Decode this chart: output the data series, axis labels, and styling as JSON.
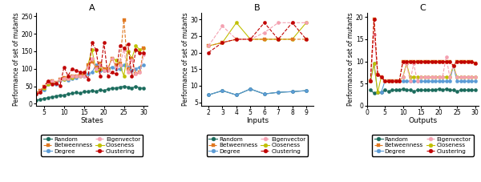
{
  "panel_A": {
    "title": "A",
    "xlabel": "States",
    "ylabel": "Performance of set of mutants",
    "xlim": [
      3,
      31
    ],
    "ylim": [
      -5,
      260
    ],
    "xticks": [
      5,
      10,
      15,
      20,
      25,
      30
    ],
    "yticks": [
      0,
      50,
      100,
      150,
      200,
      250
    ],
    "series": {
      "Random": {
        "x": [
          3,
          4,
          5,
          6,
          7,
          8,
          9,
          10,
          11,
          12,
          13,
          14,
          15,
          16,
          17,
          18,
          19,
          20,
          21,
          22,
          23,
          24,
          25,
          26,
          27,
          28,
          29,
          30
        ],
        "y": [
          10,
          13,
          15,
          18,
          20,
          22,
          25,
          25,
          28,
          30,
          32,
          30,
          35,
          35,
          38,
          35,
          40,
          38,
          42,
          45,
          45,
          48,
          50,
          48,
          45,
          50,
          45,
          45
        ],
        "color": "#1a6b5c",
        "marker": "o",
        "linestyle": "-"
      },
      "Degree": {
        "x": [
          3,
          4,
          5,
          6,
          7,
          8,
          9,
          10,
          11,
          12,
          13,
          14,
          15,
          16,
          17,
          18,
          19,
          20,
          21,
          22,
          23,
          24,
          25,
          26,
          27,
          28,
          29,
          30
        ],
        "y": [
          28,
          32,
          40,
          55,
          60,
          55,
          68,
          70,
          68,
          72,
          75,
          78,
          80,
          85,
          90,
          110,
          95,
          95,
          100,
          105,
          100,
          100,
          110,
          105,
          95,
          100,
          105,
          110
        ],
        "color": "#5b9bd5",
        "marker": "o",
        "linestyle": "-"
      },
      "Closeness": {
        "x": [
          3,
          4,
          5,
          6,
          7,
          8,
          9,
          10,
          11,
          12,
          13,
          14,
          15,
          16,
          17,
          18,
          19,
          20,
          21,
          22,
          23,
          24,
          25,
          26,
          27,
          28,
          29,
          30
        ],
        "y": [
          28,
          35,
          45,
          55,
          60,
          60,
          70,
          70,
          72,
          75,
          78,
          80,
          82,
          110,
          155,
          95,
          100,
          100,
          100,
          130,
          125,
          110,
          80,
          150,
          130,
          165,
          155,
          160
        ],
        "color": "#c0c000",
        "marker": "o",
        "linestyle": "-"
      },
      "Betweenness": {
        "x": [
          3,
          4,
          5,
          6,
          7,
          8,
          9,
          10,
          11,
          12,
          13,
          14,
          15,
          16,
          17,
          18,
          19,
          20,
          21,
          22,
          23,
          24,
          25,
          26,
          27,
          28,
          29,
          30
        ],
        "y": [
          30,
          38,
          50,
          60,
          65,
          60,
          70,
          75,
          75,
          80,
          80,
          82,
          85,
          110,
          120,
          105,
          115,
          100,
          100,
          130,
          110,
          115,
          240,
          100,
          130,
          85,
          90,
          160
        ],
        "color": "#e07820",
        "marker": "s",
        "linestyle": "--"
      },
      "Eigenvector": {
        "x": [
          3,
          4,
          5,
          6,
          7,
          8,
          9,
          10,
          11,
          12,
          13,
          14,
          15,
          16,
          17,
          18,
          19,
          20,
          21,
          22,
          23,
          24,
          25,
          26,
          27,
          28,
          29,
          30
        ],
        "y": [
          28,
          35,
          50,
          62,
          65,
          60,
          70,
          72,
          72,
          80,
          80,
          80,
          80,
          105,
          130,
          100,
          110,
          95,
          95,
          130,
          105,
          110,
          155,
          90,
          125,
          85,
          90,
          140
        ],
        "color": "#f4a0b0",
        "marker": "o",
        "linestyle": "--"
      },
      "Clustering": {
        "x": [
          3,
          4,
          5,
          6,
          7,
          8,
          9,
          10,
          11,
          12,
          13,
          14,
          15,
          16,
          17,
          18,
          19,
          20,
          21,
          22,
          23,
          24,
          25,
          26,
          27,
          28,
          29,
          30
        ],
        "y": [
          28,
          32,
          50,
          65,
          55,
          58,
          52,
          105,
          80,
          100,
          95,
          90,
          90,
          70,
          175,
          155,
          80,
          175,
          80,
          90,
          85,
          165,
          160,
          170,
          80,
          155,
          145,
          145
        ],
        "color": "#c00000",
        "marker": "o",
        "linestyle": "--"
      }
    }
  },
  "panel_B": {
    "title": "B",
    "xlabel": "Inputs",
    "ylabel": "Performance of set of mutants",
    "xlim": [
      1.5,
      9.5
    ],
    "ylim": [
      4,
      32
    ],
    "xticks": [
      2,
      3,
      4,
      5,
      6,
      7,
      8,
      9
    ],
    "yticks": [
      5,
      10,
      15,
      20,
      25,
      30
    ],
    "series": {
      "Random": {
        "x": [
          2,
          3,
          4,
          5,
          6,
          7,
          8,
          9
        ],
        "y": [
          7.2,
          8.5,
          7.2,
          9.0,
          7.5,
          8.0,
          8.2,
          8.5
        ],
        "color": "#1a6b5c",
        "marker": "o",
        "linestyle": "-"
      },
      "Degree": {
        "x": [
          2,
          3,
          4,
          5,
          6,
          7,
          8,
          9
        ],
        "y": [
          7.2,
          8.5,
          7.2,
          9.0,
          7.5,
          8.0,
          8.2,
          8.5
        ],
        "color": "#5b9bd5",
        "marker": "o",
        "linestyle": "-"
      },
      "Closeness": {
        "x": [
          2,
          3,
          4,
          5,
          6,
          7,
          8,
          9
        ],
        "y": [
          22,
          23,
          29,
          24,
          24,
          24,
          24,
          29
        ],
        "color": "#c0c000",
        "marker": "o",
        "linestyle": "-"
      },
      "Betweenness": {
        "x": [
          2,
          3,
          4,
          5,
          6,
          7,
          8,
          9
        ],
        "y": [
          22,
          23,
          24,
          24,
          24,
          24,
          24,
          24
        ],
        "color": "#e07820",
        "marker": "s",
        "linestyle": "--"
      },
      "Eigenvector": {
        "x": [
          2,
          3,
          4,
          5,
          6,
          7,
          8,
          9
        ],
        "y": [
          22,
          28,
          24,
          24,
          26,
          29,
          29,
          29
        ],
        "color": "#f4a0b0",
        "marker": "o",
        "linestyle": "--"
      },
      "Clustering": {
        "x": [
          2,
          3,
          4,
          5,
          6,
          7,
          8,
          9
        ],
        "y": [
          20,
          23,
          24,
          24,
          29,
          24,
          29,
          24
        ],
        "color": "#c00000",
        "marker": "o",
        "linestyle": "--"
      }
    }
  },
  "panel_C": {
    "title": "C",
    "xlabel": "Outputs",
    "ylabel": "Performance of set of mutants",
    "xlim": [
      0,
      31
    ],
    "ylim": [
      0,
      21
    ],
    "xticks": [
      0,
      5,
      10,
      15,
      20,
      25,
      30
    ],
    "yticks": [
      0,
      5,
      10,
      15,
      20
    ],
    "series": {
      "Random": {
        "x": [
          1,
          2,
          3,
          4,
          5,
          6,
          7,
          8,
          9,
          10,
          11,
          12,
          13,
          14,
          15,
          16,
          17,
          18,
          19,
          20,
          21,
          22,
          23,
          24,
          25,
          26,
          27,
          28,
          29,
          30
        ],
        "y": [
          3.5,
          2.8,
          3.0,
          3.0,
          3.5,
          3.2,
          3.5,
          3.5,
          3.5,
          3.8,
          3.5,
          3.5,
          3.2,
          3.5,
          3.5,
          3.5,
          3.5,
          3.5,
          3.5,
          3.8,
          3.5,
          3.8,
          3.5,
          3.5,
          3.2,
          3.5,
          3.5,
          3.5,
          3.5,
          3.5
        ],
        "color": "#1a6b5c",
        "marker": "o",
        "linestyle": "-"
      },
      "Degree": {
        "x": [
          1,
          2,
          3,
          4,
          5,
          6,
          7,
          8,
          9,
          10,
          11,
          12,
          13,
          14,
          15,
          16,
          17,
          18,
          19,
          20,
          21,
          22,
          23,
          24,
          25,
          26,
          27,
          28,
          29,
          30
        ],
        "y": [
          5.5,
          9.5,
          3.0,
          3.0,
          5.5,
          5.5,
          5.5,
          5.5,
          5.5,
          5.5,
          5.5,
          5.5,
          5.5,
          5.5,
          5.5,
          5.5,
          5.5,
          5.5,
          5.5,
          5.5,
          5.5,
          5.5,
          5.5,
          9.0,
          5.5,
          5.5,
          5.5,
          5.5,
          5.5,
          5.5
        ],
        "color": "#5b9bd5",
        "marker": "o",
        "linestyle": "-"
      },
      "Closeness": {
        "x": [
          1,
          2,
          3,
          4,
          5,
          6,
          7,
          8,
          9,
          10,
          11,
          12,
          13,
          14,
          15,
          16,
          17,
          18,
          19,
          20,
          21,
          22,
          23,
          24,
          25,
          26,
          27,
          28,
          29,
          30
        ],
        "y": [
          5.5,
          9.5,
          3.0,
          6.5,
          5.5,
          5.5,
          5.5,
          5.5,
          5.5,
          6.5,
          9.5,
          6.5,
          6.5,
          6.5,
          6.5,
          6.5,
          6.5,
          6.5,
          6.5,
          6.5,
          6.5,
          6.5,
          6.5,
          9.0,
          6.5,
          6.5,
          6.5,
          6.5,
          6.5,
          6.5
        ],
        "color": "#c0c000",
        "marker": "o",
        "linestyle": "-"
      },
      "Betweenness": {
        "x": [
          1,
          2,
          3,
          4,
          5,
          6,
          7,
          8,
          9,
          10,
          11,
          12,
          13,
          14,
          15,
          16,
          17,
          18,
          19,
          20,
          21,
          22,
          23,
          24,
          25,
          26,
          27,
          28,
          29,
          30
        ],
        "y": [
          5.5,
          19.5,
          7.0,
          6.5,
          5.5,
          5.5,
          5.5,
          5.5,
          5.5,
          10.0,
          10.0,
          10.0,
          10.0,
          10.0,
          10.0,
          10.0,
          10.0,
          10.0,
          10.0,
          10.0,
          10.0,
          10.0,
          10.0,
          9.0,
          10.0,
          10.0,
          10.0,
          10.0,
          10.0,
          9.5
        ],
        "color": "#e07820",
        "marker": "s",
        "linestyle": "--"
      },
      "Eigenvector": {
        "x": [
          1,
          2,
          3,
          4,
          5,
          6,
          7,
          8,
          9,
          10,
          11,
          12,
          13,
          14,
          15,
          16,
          17,
          18,
          19,
          20,
          21,
          22,
          23,
          24,
          25,
          26,
          27,
          28,
          29,
          30
        ],
        "y": [
          5.5,
          16.0,
          7.0,
          6.5,
          5.5,
          5.5,
          5.5,
          5.5,
          5.5,
          6.5,
          9.5,
          5.5,
          9.5,
          5.5,
          6.5,
          6.5,
          6.5,
          6.5,
          6.5,
          6.5,
          6.5,
          11.0,
          6.5,
          9.0,
          6.5,
          6.5,
          6.5,
          6.5,
          6.5,
          6.5
        ],
        "color": "#f4a0b0",
        "marker": "o",
        "linestyle": "--"
      },
      "Clustering": {
        "x": [
          1,
          2,
          3,
          4,
          5,
          6,
          7,
          8,
          9,
          10,
          11,
          12,
          13,
          14,
          15,
          16,
          17,
          18,
          19,
          20,
          21,
          22,
          23,
          24,
          25,
          26,
          27,
          28,
          29,
          30
        ],
        "y": [
          5.5,
          19.5,
          7.0,
          6.5,
          5.5,
          5.5,
          5.5,
          5.5,
          5.5,
          10.0,
          10.0,
          10.0,
          10.0,
          10.0,
          10.0,
          10.0,
          10.0,
          10.0,
          10.0,
          10.0,
          10.0,
          10.0,
          10.0,
          9.0,
          10.0,
          10.0,
          10.0,
          10.0,
          10.0,
          9.5
        ],
        "color": "#c00000",
        "marker": "o",
        "linestyle": "--"
      }
    }
  },
  "legend_order": [
    "Random",
    "Betweenness",
    "Degree",
    "Eigenvector",
    "Closeness",
    "Clustering"
  ],
  "legend_markers": {
    "Random": {
      "color": "#1a6b5c",
      "marker": "o",
      "linestyle": "-"
    },
    "Degree": {
      "color": "#5b9bd5",
      "marker": "o",
      "linestyle": "-"
    },
    "Closeness": {
      "color": "#c0c000",
      "marker": "o",
      "linestyle": "-"
    },
    "Betweenness": {
      "color": "#e07820",
      "marker": "s",
      "linestyle": "--"
    },
    "Eigenvector": {
      "color": "#f4a0b0",
      "marker": "o",
      "linestyle": "--"
    },
    "Clustering": {
      "color": "#c00000",
      "marker": "o",
      "linestyle": "--"
    }
  },
  "markersize": 3,
  "linewidth": 0.8
}
